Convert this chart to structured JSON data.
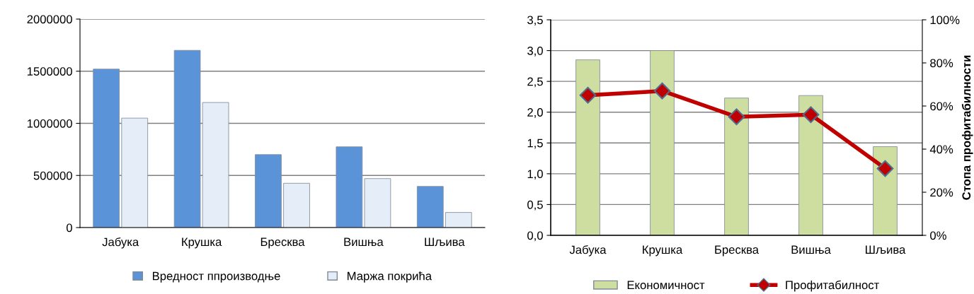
{
  "chart_data": [
    {
      "type": "bar",
      "categories": [
        "Јабука",
        "Крушка",
        "Бресква",
        "Вишња",
        "Шљива"
      ],
      "series": [
        {
          "name": "Вредност ппроизводње",
          "color": "#5b93d9",
          "values": [
            1520000,
            1700000,
            700000,
            775000,
            395000
          ]
        },
        {
          "name": "Маржа покрића",
          "color": "#e4edf8",
          "values": [
            1050000,
            1200000,
            425000,
            470000,
            145000
          ]
        }
      ],
      "ylim": [
        0,
        2000000
      ],
      "yticks": [
        0,
        500000,
        1000000,
        1500000,
        2000000
      ],
      "grid": "y",
      "legend": "bottom"
    },
    {
      "type": "bar",
      "categories": [
        "Јабука",
        "Крушка",
        "Бресква",
        "Вишња",
        "Шљива"
      ],
      "series": [
        {
          "name": "Економичност",
          "color": "#cddea0",
          "values": [
            2.85,
            3.0,
            2.23,
            2.27,
            1.44
          ]
        },
        {
          "name": "Профитабилност",
          "type": "line",
          "axis": "y2",
          "color": "#c00000",
          "values": [
            65,
            67,
            55,
            56,
            31
          ]
        }
      ],
      "ylim": [
        0,
        3.5
      ],
      "yticks": [
        {
          "value": 0,
          "label": "0,0"
        },
        {
          "value": 0.5,
          "label": "0,5"
        },
        {
          "value": 1,
          "label": "1,0"
        },
        {
          "value": 1.5,
          "label": "1,5"
        },
        {
          "value": 2,
          "label": "2,0"
        },
        {
          "value": 2.5,
          "label": "2,5"
        },
        {
          "value": 3,
          "label": "3,0"
        },
        {
          "value": 3.5,
          "label": "3,5"
        }
      ],
      "y2lim": [
        0,
        100
      ],
      "y2ticks": [
        {
          "value": 0,
          "label": "0%"
        },
        {
          "value": 20,
          "label": "20%"
        },
        {
          "value": 40,
          "label": "40%"
        },
        {
          "value": 60,
          "label": "60%"
        },
        {
          "value": 80,
          "label": "80%"
        },
        {
          "value": 100,
          "label": "100%"
        }
      ],
      "y2label": "Стопа профитабилности",
      "grid": "y",
      "legend": "bottom",
      "marker": "diamond"
    }
  ]
}
